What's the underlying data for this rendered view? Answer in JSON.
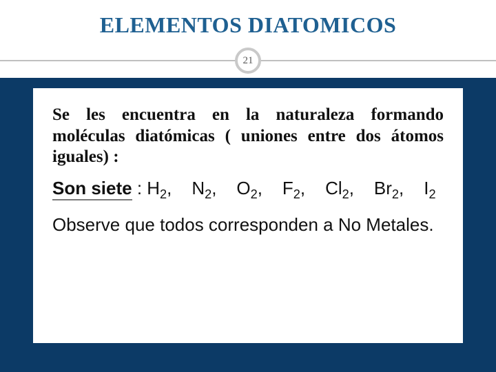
{
  "title": "ELEMENTOS DIATOMICOS",
  "slide_number": "21",
  "colors": {
    "title_color": "#1f6091",
    "band_color": "#0c3a66",
    "hr_color": "#bfbfbf",
    "badge_border": "#c9c9c9",
    "text_color": "#111111",
    "background": "#ffffff"
  },
  "intro_text": "Se les encuentra en la naturaleza formando moléculas diatómicas ( uniones entre dos átomos iguales) :",
  "siete_label": "Son siete",
  "siete_sep": " : ",
  "molecules": [
    {
      "sym": "H",
      "sub": "2",
      "sep": ","
    },
    {
      "sym": "N",
      "sub": "2",
      "sep": ","
    },
    {
      "sym": "O",
      "sub": "2",
      "sep": ","
    },
    {
      "sym": "F",
      "sub": "2",
      "sep": ","
    },
    {
      "sym": "Cl",
      "sub": "2",
      "sep": ","
    },
    {
      "sym": "Br",
      "sub": "2",
      "sep": ","
    },
    {
      "sym": "I",
      "sub": "2",
      "sep": ""
    }
  ],
  "note_text": "Observe que todos corresponden a No Metales.",
  "typography": {
    "title_fontsize": 32,
    "body_serif_fontsize": 25,
    "body_sans_fontsize": 26
  }
}
